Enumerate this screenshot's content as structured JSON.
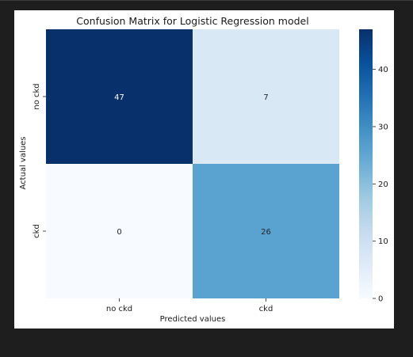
{
  "chart_data": {
    "type": "heatmap",
    "title": "Confusion Matrix for Logistic Regression model",
    "xlabel": "Predicted values",
    "ylabel": "Actual values",
    "x_categories": [
      "no ckd",
      "ckd"
    ],
    "y_categories": [
      "no ckd",
      "ckd"
    ],
    "values": [
      [
        47,
        7
      ],
      [
        0,
        26
      ]
    ],
    "colormap": "Blues",
    "colorbar": {
      "min": 0,
      "max": 47,
      "ticks": [
        0,
        10,
        20,
        30,
        40
      ]
    },
    "grid": false,
    "colors": {
      "cell_47": "#08306b",
      "cell_7": "#d4e4f4",
      "cell_0": "#f7fbff",
      "cell_26": "#4b98ca",
      "text_on_dark": "#ffffff",
      "text_on_light": "#262626"
    }
  }
}
